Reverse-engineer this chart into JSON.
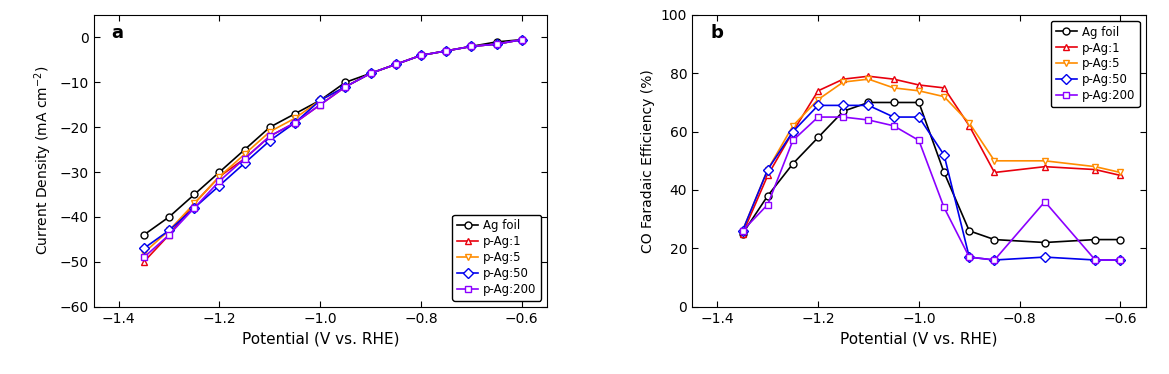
{
  "panel_a": {
    "title": "a",
    "xlabel": "Potential (V vs. RHE)",
    "ylabel": "Current Density (mA cm$^{-2}$)",
    "xlim": [
      -1.45,
      -0.55
    ],
    "ylim": [
      -60,
      5
    ],
    "xticks": [
      -1.4,
      -1.2,
      -1.0,
      -0.8,
      -0.6
    ],
    "yticks": [
      0,
      -10,
      -20,
      -30,
      -40,
      -50,
      -60
    ],
    "legend_loc": "lower right",
    "series": {
      "Ag foil": {
        "color": "#000000",
        "marker": "o",
        "x": [
          -1.35,
          -1.3,
          -1.25,
          -1.2,
          -1.15,
          -1.1,
          -1.05,
          -1.0,
          -0.95,
          -0.9,
          -0.85,
          -0.8,
          -0.75,
          -0.7,
          -0.65,
          -0.6
        ],
        "y": [
          -44,
          -40,
          -35,
          -30,
          -25,
          -20,
          -17,
          -14,
          -10,
          -8,
          -6,
          -4,
          -3,
          -2,
          -1,
          -0.5
        ]
      },
      "p-Ag:1": {
        "color": "#e8000d",
        "marker": "^",
        "x": [
          -1.35,
          -1.3,
          -1.25,
          -1.2,
          -1.15,
          -1.1,
          -1.05,
          -1.0,
          -0.95,
          -0.9,
          -0.85,
          -0.8,
          -0.75,
          -0.7,
          -0.65,
          -0.6
        ],
        "y": [
          -50,
          -44,
          -37,
          -31,
          -27,
          -22,
          -19,
          -15,
          -11,
          -8,
          -6,
          -4,
          -3,
          -2,
          -1.5,
          -0.5
        ]
      },
      "p-Ag:5": {
        "color": "#ff8c00",
        "marker": "v",
        "x": [
          -1.35,
          -1.3,
          -1.25,
          -1.2,
          -1.15,
          -1.1,
          -1.05,
          -1.0,
          -0.95,
          -0.9,
          -0.85,
          -0.8,
          -0.75,
          -0.7,
          -0.65,
          -0.6
        ],
        "y": [
          -48,
          -43,
          -37,
          -31,
          -26,
          -21,
          -18,
          -14,
          -11,
          -8,
          -6,
          -4,
          -3,
          -2,
          -1.5,
          -0.5
        ]
      },
      "p-Ag:50": {
        "color": "#0000ee",
        "marker": "D",
        "x": [
          -1.35,
          -1.3,
          -1.25,
          -1.2,
          -1.15,
          -1.1,
          -1.05,
          -1.0,
          -0.95,
          -0.9,
          -0.85,
          -0.8,
          -0.75,
          -0.7,
          -0.65,
          -0.6
        ],
        "y": [
          -47,
          -43,
          -38,
          -33,
          -28,
          -23,
          -19,
          -14,
          -11,
          -8,
          -6,
          -4,
          -3,
          -2,
          -1.5,
          -0.5
        ]
      },
      "p-Ag:200": {
        "color": "#8b00ff",
        "marker": "s",
        "x": [
          -1.35,
          -1.3,
          -1.25,
          -1.2,
          -1.15,
          -1.1,
          -1.05,
          -1.0,
          -0.95,
          -0.9,
          -0.85,
          -0.8,
          -0.75,
          -0.7,
          -0.65,
          -0.6
        ],
        "y": [
          -49,
          -44,
          -38,
          -32,
          -27,
          -22,
          -19,
          -15,
          -11,
          -8,
          -6,
          -4,
          -3,
          -2,
          -1.5,
          -0.5
        ]
      }
    }
  },
  "panel_b": {
    "title": "b",
    "xlabel": "Potential (V vs. RHE)",
    "ylabel": "CO Faradaic Efficiency (%)",
    "xlim": [
      -1.45,
      -0.55
    ],
    "ylim": [
      0,
      100
    ],
    "xticks": [
      -1.4,
      -1.2,
      -1.0,
      -0.8,
      -0.6
    ],
    "yticks": [
      0,
      20,
      40,
      60,
      80,
      100
    ],
    "legend_loc": "upper right",
    "series": {
      "Ag foil": {
        "color": "#000000",
        "marker": "o",
        "x": [
          -1.35,
          -1.3,
          -1.25,
          -1.2,
          -1.15,
          -1.1,
          -1.05,
          -1.0,
          -0.95,
          -0.9,
          -0.85,
          -0.75,
          -0.65,
          -0.6
        ],
        "y": [
          25,
          38,
          49,
          58,
          67,
          70,
          70,
          70,
          46,
          26,
          23,
          22,
          23,
          23
        ]
      },
      "p-Ag:1": {
        "color": "#e8000d",
        "marker": "^",
        "x": [
          -1.35,
          -1.3,
          -1.25,
          -1.2,
          -1.15,
          -1.1,
          -1.05,
          -1.0,
          -0.95,
          -0.9,
          -0.85,
          -0.75,
          -0.65,
          -0.6
        ],
        "y": [
          25,
          45,
          60,
          74,
          78,
          79,
          78,
          76,
          75,
          62,
          46,
          48,
          47,
          45
        ]
      },
      "p-Ag:5": {
        "color": "#ff8c00",
        "marker": "v",
        "x": [
          -1.35,
          -1.3,
          -1.25,
          -1.2,
          -1.15,
          -1.1,
          -1.05,
          -1.0,
          -0.95,
          -0.9,
          -0.85,
          -0.75,
          -0.65,
          -0.6
        ],
        "y": [
          26,
          47,
          62,
          71,
          77,
          78,
          75,
          74,
          72,
          63,
          50,
          50,
          48,
          46
        ]
      },
      "p-Ag:50": {
        "color": "#0000ee",
        "marker": "D",
        "x": [
          -1.35,
          -1.3,
          -1.25,
          -1.2,
          -1.15,
          -1.1,
          -1.05,
          -1.0,
          -0.95,
          -0.9,
          -0.85,
          -0.75,
          -0.65,
          -0.6
        ],
        "y": [
          26,
          47,
          60,
          69,
          69,
          69,
          65,
          65,
          52,
          17,
          16,
          17,
          16,
          16
        ]
      },
      "p-Ag:200": {
        "color": "#8b00ff",
        "marker": "s",
        "x": [
          -1.35,
          -1.3,
          -1.25,
          -1.2,
          -1.15,
          -1.1,
          -1.05,
          -1.0,
          -0.95,
          -0.9,
          -0.85,
          -0.75,
          -0.65,
          -0.6
        ],
        "y": [
          26,
          35,
          57,
          65,
          65,
          64,
          62,
          57,
          34,
          17,
          16,
          36,
          16,
          16
        ]
      }
    }
  },
  "background_color": "#ffffff",
  "figure_background": "#ffffff"
}
